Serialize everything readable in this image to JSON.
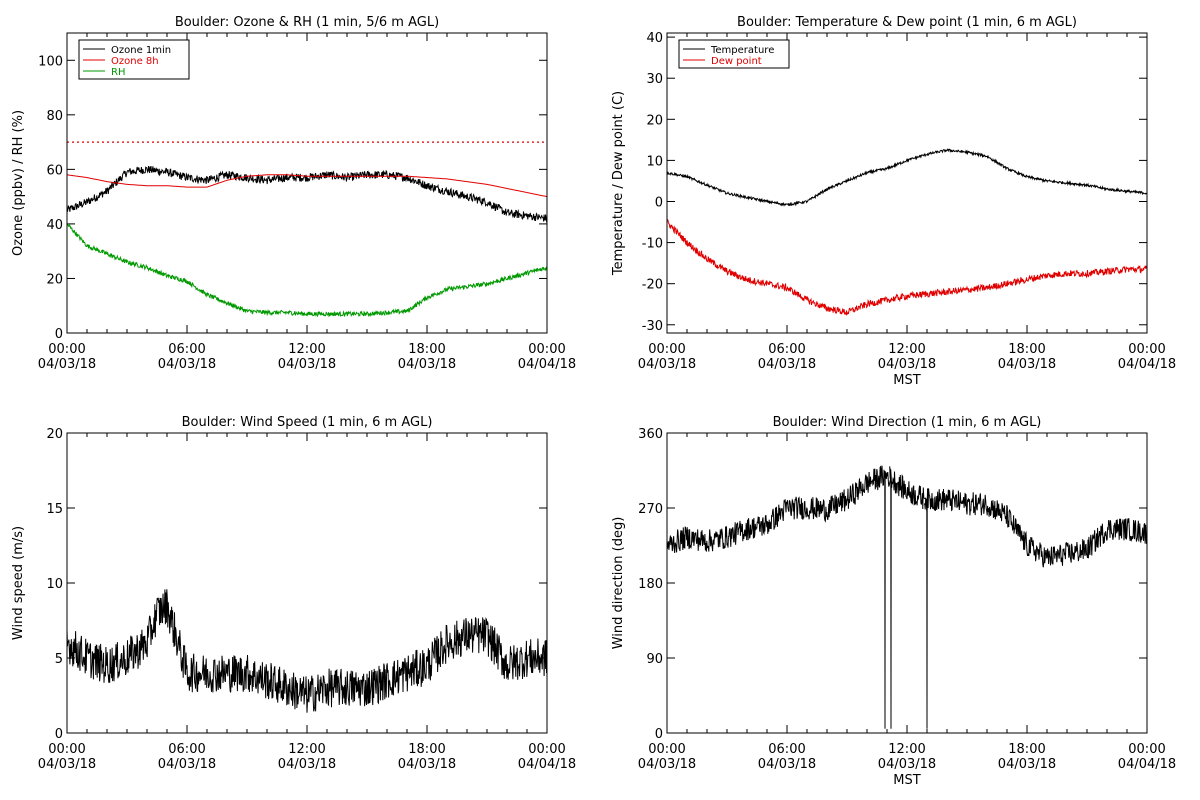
{
  "chart_data": [
    {
      "type": "line",
      "title": "Boulder: Ozone & RH (1 min, 5/6 m AGL)",
      "ylabel": "Ozone (ppbv) / RH (%)",
      "xlabel": "",
      "ylim": [
        0,
        110
      ],
      "yticks": [
        0,
        20,
        40,
        60,
        80,
        100
      ],
      "xticks": [
        {
          "l1": "00:00",
          "l2": "04/03/18"
        },
        {
          "l1": "06:00",
          "l2": "04/03/18"
        },
        {
          "l1": "12:00",
          "l2": "04/03/18"
        },
        {
          "l1": "18:00",
          "l2": "04/03/18"
        },
        {
          "l1": "00:00",
          "l2": "04/04/18"
        }
      ],
      "legend": {
        "position": "top-left",
        "entries": [
          {
            "name": "Ozone 1min",
            "color": "#000000"
          },
          {
            "name": "Ozone 8h",
            "color": "#e00000"
          },
          {
            "name": "RH",
            "color": "#009900"
          }
        ]
      },
      "reference_line": {
        "y": 70,
        "color": "#e00000",
        "style": "dotted"
      },
      "series": [
        {
          "name": "Ozone 1min",
          "color": "#000000",
          "noise": 1.5,
          "x": [
            0,
            1,
            2,
            3,
            4,
            5,
            6,
            7,
            8,
            9,
            10,
            11,
            12,
            13,
            14,
            15,
            16,
            17,
            18,
            19,
            20,
            21,
            22,
            23,
            24
          ],
          "values": [
            45,
            48,
            52,
            59,
            60,
            59,
            57,
            56,
            58,
            57,
            56,
            57,
            57,
            58,
            57,
            58,
            58,
            57,
            54,
            52,
            50,
            48,
            44,
            43,
            42
          ]
        },
        {
          "name": "Ozone 8h",
          "color": "#e00000",
          "noise": 0,
          "x": [
            0,
            1,
            2,
            3,
            4,
            5,
            6,
            7,
            8,
            9,
            10,
            11,
            12,
            13,
            14,
            15,
            16,
            17,
            18,
            19,
            20,
            21,
            22,
            23,
            24
          ],
          "values": [
            58,
            57,
            55.5,
            54.5,
            54,
            54,
            53.5,
            53.5,
            56,
            57.5,
            58,
            58,
            57.5,
            57.5,
            57.5,
            57.5,
            57.5,
            57.5,
            57,
            56.5,
            55.5,
            54.5,
            53,
            51.5,
            50
          ]
        },
        {
          "name": "RH",
          "color": "#009900",
          "noise": 0.8,
          "x": [
            0,
            1,
            2,
            3,
            4,
            5,
            6,
            7,
            8,
            9,
            10,
            11,
            12,
            13,
            14,
            15,
            16,
            17,
            18,
            19,
            20,
            21,
            22,
            23,
            24
          ],
          "values": [
            40,
            32,
            29,
            26,
            24,
            21,
            19,
            14,
            11,
            8,
            7.5,
            7.5,
            7,
            7,
            7,
            7,
            7.5,
            8,
            13,
            16,
            17,
            18,
            20,
            22,
            24
          ]
        }
      ]
    },
    {
      "type": "line",
      "title": "Boulder: Temperature & Dew point (1 min, 6 m AGL)",
      "ylabel": "Temperature / Dew point (C)",
      "xlabel": "MST",
      "ylim": [
        -32,
        41
      ],
      "yticks": [
        -30,
        -20,
        -10,
        0,
        10,
        20,
        30,
        40
      ],
      "xticks": [
        {
          "l1": "00:00",
          "l2": "04/03/18"
        },
        {
          "l1": "06:00",
          "l2": "04/03/18"
        },
        {
          "l1": "12:00",
          "l2": "04/03/18"
        },
        {
          "l1": "18:00",
          "l2": "04/03/18"
        },
        {
          "l1": "00:00",
          "l2": "04/04/18"
        }
      ],
      "legend": {
        "position": "top-left",
        "entries": [
          {
            "name": "Temperature",
            "color": "#000000"
          },
          {
            "name": "Dew point",
            "color": "#e00000"
          }
        ]
      },
      "series": [
        {
          "name": "Temperature",
          "color": "#000000",
          "noise": 0.3,
          "x": [
            0,
            1,
            2,
            3,
            4,
            5,
            6,
            7,
            8,
            9,
            10,
            11,
            12,
            13,
            14,
            15,
            16,
            17,
            18,
            19,
            20,
            21,
            22,
            23,
            24
          ],
          "values": [
            7,
            6,
            4,
            2,
            1,
            0,
            -0.8,
            0,
            3,
            5,
            7,
            8,
            10,
            11.5,
            12.5,
            12,
            11,
            8,
            6,
            5,
            4.5,
            4,
            3,
            2.5,
            2
          ]
        },
        {
          "name": "Dew point",
          "color": "#e00000",
          "noise": 0.8,
          "x": [
            0,
            1,
            2,
            3,
            4,
            5,
            6,
            7,
            8,
            9,
            10,
            11,
            12,
            13,
            14,
            15,
            16,
            17,
            18,
            19,
            20,
            21,
            22,
            23,
            24
          ],
          "values": [
            -5,
            -10,
            -14,
            -17,
            -19,
            -20,
            -21,
            -24,
            -26,
            -27,
            -25,
            -24,
            -23,
            -22.5,
            -22,
            -21.5,
            -21,
            -20,
            -19,
            -18,
            -17.5,
            -17.5,
            -17,
            -16.5,
            -16.5
          ]
        }
      ]
    },
    {
      "type": "line",
      "title": "Boulder: Wind Speed (1 min, 6 m AGL)",
      "ylabel": "Wind speed (m/s)",
      "xlabel": "",
      "ylim": [
        0,
        20
      ],
      "yticks": [
        0,
        5,
        10,
        15,
        20
      ],
      "xticks": [
        {
          "l1": "00:00",
          "l2": "04/03/18"
        },
        {
          "l1": "06:00",
          "l2": "04/03/18"
        },
        {
          "l1": "12:00",
          "l2": "04/03/18"
        },
        {
          "l1": "18:00",
          "l2": "04/03/18"
        },
        {
          "l1": "00:00",
          "l2": "04/04/18"
        }
      ],
      "series": [
        {
          "name": "",
          "color": "#000000",
          "noise": 1.3,
          "x": [
            0,
            1,
            2,
            3,
            4,
            4.5,
            5,
            6,
            7,
            8,
            9,
            10,
            11,
            12,
            13,
            14,
            15,
            16,
            17,
            18,
            19,
            20,
            21,
            22,
            23,
            24
          ],
          "values": [
            6,
            5,
            4.5,
            5,
            6,
            8,
            8.5,
            4,
            4,
            4,
            4,
            3.5,
            3,
            2.5,
            3,
            3,
            3,
            3.5,
            4,
            4.5,
            6,
            6.5,
            6.5,
            4.5,
            5,
            5
          ]
        }
      ]
    },
    {
      "type": "line",
      "title": "Boulder: Wind Direction (1 min, 6 m AGL)",
      "ylabel": "Wind direction (deg)",
      "xlabel": "MST",
      "ylim": [
        0,
        360
      ],
      "yticks": [
        0,
        90,
        180,
        270,
        360
      ],
      "xticks": [
        {
          "l1": "00:00",
          "l2": "04/03/18"
        },
        {
          "l1": "06:00",
          "l2": "04/03/18"
        },
        {
          "l1": "12:00",
          "l2": "04/03/18"
        },
        {
          "l1": "18:00",
          "l2": "04/03/18"
        },
        {
          "l1": "00:00",
          "l2": "04/04/18"
        }
      ],
      "series": [
        {
          "name": "",
          "color": "#000000",
          "noise": 14,
          "x": [
            0,
            1,
            2,
            3,
            4,
            5,
            6,
            7,
            8,
            9,
            10,
            11,
            12,
            13,
            14,
            15,
            16,
            17,
            18,
            19,
            20,
            21,
            22,
            23,
            24
          ],
          "values": [
            225,
            235,
            230,
            235,
            245,
            250,
            270,
            270,
            268,
            280,
            300,
            310,
            290,
            280,
            280,
            275,
            275,
            260,
            225,
            210,
            215,
            220,
            245,
            245,
            240
          ],
          "spikes": [
            {
              "x": 10.9,
              "y": 5
            },
            {
              "x": 11.2,
              "y": 5
            },
            {
              "x": 13.0,
              "y": 5
            }
          ]
        }
      ]
    }
  ]
}
